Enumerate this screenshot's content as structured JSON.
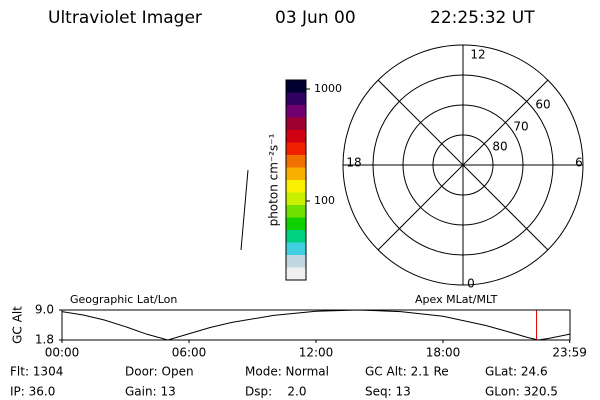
{
  "header": {
    "instrument": "Ultraviolet Imager",
    "date": "03 Jun 00",
    "time": "22:25:32 UT"
  },
  "colorbar": {
    "label": "photon cm⁻²s⁻¹",
    "range": [
      19.7,
      1203
    ],
    "log": true,
    "ticks": [
      1000,
      100
    ],
    "colors": [
      "#000030",
      "#300060",
      "#700070",
      "#a00030",
      "#d00010",
      "#f02000",
      "#f07000",
      "#f8b000",
      "#f8f000",
      "#c8f000",
      "#70e000",
      "#10d000",
      "#00d080",
      "#40d0e0",
      "#c0d8e0",
      "#f0f0f0"
    ]
  },
  "polar": {
    "mlt": [
      "12",
      "18",
      "6",
      "0"
    ],
    "lat": [
      "60",
      "70",
      "80"
    ]
  },
  "chart_data": {
    "type": "line",
    "title_left": "Geographic Lat/Lon",
    "title_right": "Apex MLat/MLT",
    "ylabel": "GC Alt",
    "x": [
      0,
      1,
      2,
      3,
      4,
      5,
      6,
      7,
      8,
      10,
      12,
      14,
      16,
      18,
      20,
      21,
      22,
      22.5,
      23,
      24
    ],
    "values": [
      8.6,
      7.8,
      6.6,
      5.0,
      3.2,
      1.8,
      3.3,
      4.8,
      6.0,
      7.7,
      8.7,
      9.0,
      8.6,
      7.5,
      5.3,
      3.9,
      2.4,
      1.8,
      2.2,
      3.2
    ],
    "color": "#000000",
    "marker_x": 22.42,
    "marker_color": "#e00000",
    "xlim": [
      0,
      24
    ],
    "ylim": [
      1.8,
      9.0
    ],
    "xticks": [
      {
        "value": 0,
        "label": "00:00"
      },
      {
        "value": 6,
        "label": "06:00"
      },
      {
        "value": 12,
        "label": "12:00"
      },
      {
        "value": 18,
        "label": "18:00"
      },
      {
        "value": 23.983,
        "label": "23:59"
      }
    ],
    "yticks": [
      {
        "value": 9.0,
        "label": "9.0"
      },
      {
        "value": 1.8,
        "label": "1.8"
      }
    ]
  },
  "info": [
    [
      "Flt: 1304",
      "Door: Open",
      "Mode: Normal",
      "GC Alt: 2.1 Re",
      "GLat: 24.6"
    ],
    [
      "IP: 36.0",
      "Gain: 13",
      "Dsp:    2.0",
      "Seq: 13",
      "GLon: 320.5"
    ]
  ]
}
